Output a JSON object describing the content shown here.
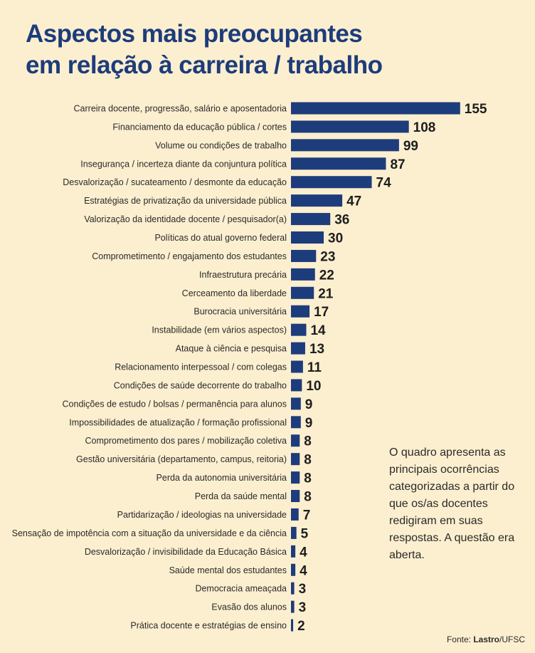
{
  "title_line1": "Aspectos mais preocupantes",
  "title_line2": "em relação à carreira / trabalho",
  "note": "O quadro apresenta as principais ocorrências categorizadas a partir do que os/as docentes redigiram em suas respostas. A questão era aberta.",
  "source_prefix": "Fonte: ",
  "source_bold": "Lastro",
  "source_suffix": "/UFSC",
  "colors": {
    "bar": "#1d3c7c",
    "background": "#fcefcf",
    "title": "#1d3c7c"
  },
  "chart_data": {
    "type": "bar",
    "orientation": "horizontal",
    "categories": [
      "Carreira docente, progressão, salário e aposentadoria",
      "Financiamento da educação pública / cortes",
      "Volume ou condições de trabalho",
      "Insegurança / incerteza diante da conjuntura política",
      "Desvalorização / sucateamento / desmonte da educação",
      "Estratégias de privatização da universidade pública",
      "Valorização da identidade docente / pesquisador(a)",
      "Políticas do atual governo federal",
      "Comprometimento / engajamento dos estudantes",
      "Infraestrutura precária",
      "Cerceamento da liberdade",
      "Burocracia universitária",
      "Instabilidade (em vários aspectos)",
      "Ataque à ciência e pesquisa",
      "Relacionamento interpessoal / com colegas",
      "Condições de saúde decorrente do trabalho",
      "Condições de estudo / bolsas / permanência para alunos",
      "Impossibilidades de atualização / formação profissional",
      "Comprometimento dos pares / mobilização coletiva",
      "Gestão universitária (departamento, campus, reitoria)",
      "Perda da autonomia universitária",
      "Perda da saúde mental",
      "Partidarização / ideologias na universidade",
      "Sensação de impotência com a situação da universidade e da ciência",
      "Desvalorização / invisibilidade da Educação Básica",
      "Saúde mental dos estudantes",
      "Democracia ameaçada",
      "Evasão dos alunos",
      "Prática docente e estratégias de ensino"
    ],
    "values": [
      155,
      108,
      99,
      87,
      74,
      47,
      36,
      30,
      23,
      22,
      21,
      17,
      14,
      13,
      11,
      10,
      9,
      9,
      8,
      8,
      8,
      8,
      7,
      5,
      4,
      4,
      3,
      3,
      2
    ],
    "title": "Aspectos mais preocupantes em relação à carreira / trabalho",
    "grid": false,
    "legend": "none"
  }
}
